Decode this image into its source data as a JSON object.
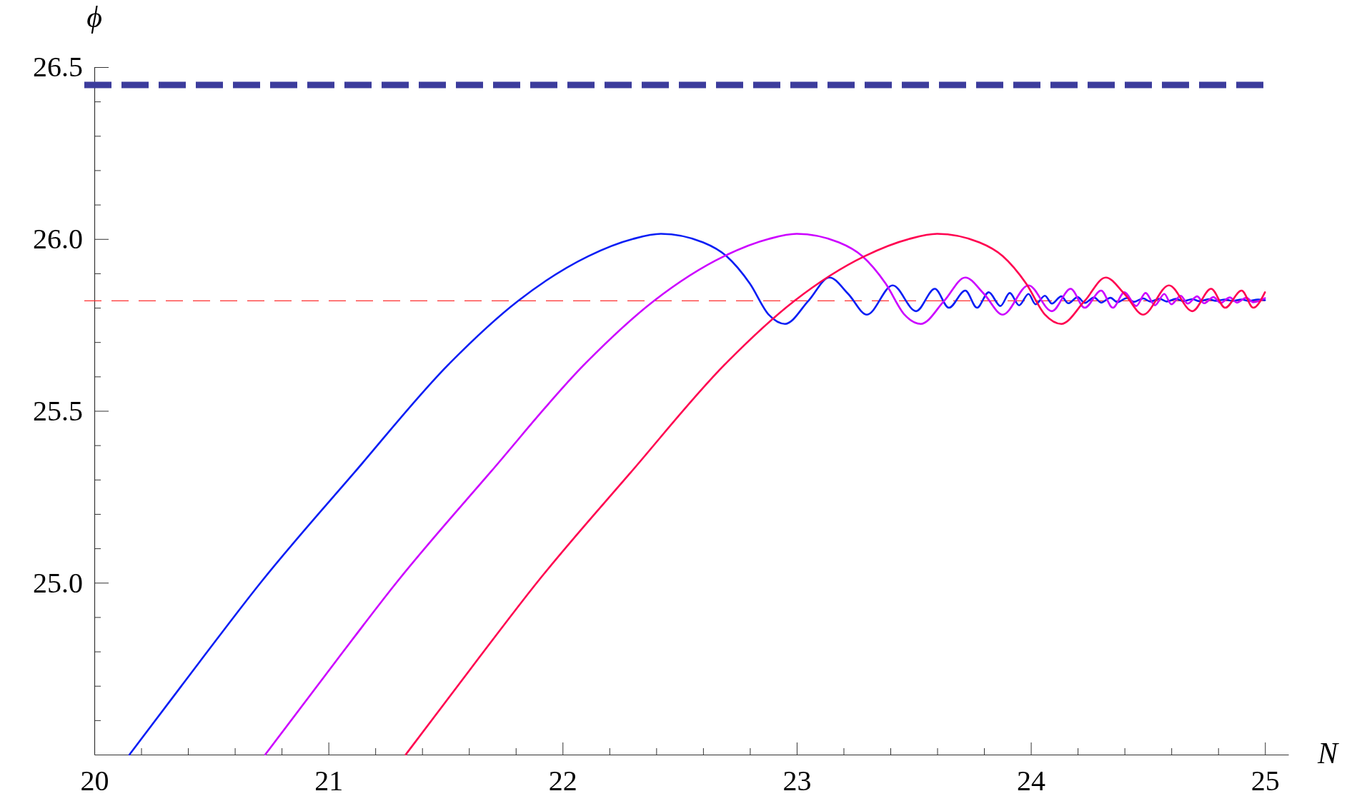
{
  "chart_data": {
    "type": "line",
    "xlabel": "N",
    "ylabel": "ϕ",
    "xlim": [
      20,
      25.1
    ],
    "ylim": [
      24.5,
      26.5
    ],
    "xticks": [
      20,
      {
        "value": 20.2,
        "label": null
      },
      {
        "value": 20.4,
        "label": null
      },
      {
        "value": 20.6,
        "label": null
      },
      {
        "value": 20.8,
        "label": null
      },
      21,
      {
        "value": 21.2,
        "label": null
      },
      {
        "value": 21.4,
        "label": null
      },
      {
        "value": 21.6,
        "label": null
      },
      {
        "value": 21.8,
        "label": null
      },
      22,
      {
        "value": 22.2,
        "label": null
      },
      {
        "value": 22.4,
        "label": null
      },
      {
        "value": 22.6,
        "label": null
      },
      {
        "value": 22.8,
        "label": null
      },
      23,
      {
        "value": 23.2,
        "label": null
      },
      {
        "value": 23.4,
        "label": null
      },
      {
        "value": 23.6,
        "label": null
      },
      {
        "value": 23.8,
        "label": null
      },
      24,
      {
        "value": 24.2,
        "label": null
      },
      {
        "value": 24.4,
        "label": null
      },
      {
        "value": 24.6,
        "label": null
      },
      {
        "value": 24.8,
        "label": null
      },
      25
    ],
    "yticks": [
      {
        "value": 24.6,
        "label": null
      },
      {
        "value": 24.7,
        "label": null
      },
      {
        "value": 24.8,
        "label": null
      },
      {
        "value": 24.9,
        "label": null
      },
      {
        "value": 25,
        "label": "25.0"
      },
      {
        "value": 25.1,
        "label": null
      },
      {
        "value": 25.2,
        "label": null
      },
      {
        "value": 25.3,
        "label": null
      },
      {
        "value": 25.4,
        "label": null
      },
      {
        "value": 25.5,
        "label": "25.5"
      },
      {
        "value": 25.6,
        "label": null
      },
      {
        "value": 25.7,
        "label": null
      },
      {
        "value": 25.8,
        "label": null
      },
      {
        "value": 25.9,
        "label": null
      },
      {
        "value": 26,
        "label": "26.0"
      },
      {
        "value": 26.1,
        "label": null
      },
      {
        "value": 26.2,
        "label": null
      },
      {
        "value": 26.3,
        "label": null
      },
      {
        "value": 26.4,
        "label": null
      },
      {
        "value": 26.5,
        "label": "26.5"
      }
    ],
    "line_style": "solid",
    "marker": "none",
    "grid": false,
    "ref_lines": [
      {
        "axis": "y",
        "value": 26.448,
        "color": "#3c3c9c",
        "line_style": "dashed"
      },
      {
        "axis": "y",
        "value": 25.82,
        "color": "#ff3030",
        "line_style": "dashed"
      }
    ],
    "series": [
      {
        "color": "#0a1ef5",
        "x": [
          20.15,
          20.45,
          20.71,
          21.11,
          21.52,
          21.81,
          22.11,
          22.3,
          22.42,
          22.6,
          22.7,
          22.8,
          22.88,
          22.95,
          23.05,
          23.14,
          23.22,
          23.3,
          23.41,
          23.51,
          23.59,
          23.65,
          23.72,
          23.77,
          23.82,
          23.87,
          23.91,
          23.95,
          23.99,
          24.02,
          24.06,
          24.09,
          24.13,
          24.16,
          24.2,
          24.23,
          24.27,
          24.3,
          24.34,
          24.37,
          24.41,
          24.44,
          24.48,
          24.51,
          24.55,
          24.58,
          24.62,
          24.65,
          24.69,
          24.72,
          24.76,
          24.79,
          24.83,
          24.86,
          24.9,
          24.93,
          24.97,
          25.0
        ],
        "values": [
          24.5,
          24.77,
          25.0,
          25.32,
          25.64,
          25.82,
          25.95,
          26.0,
          26.015,
          25.99,
          25.95,
          25.87,
          25.78,
          25.753,
          25.82,
          25.888,
          25.84,
          25.78,
          25.865,
          25.79,
          25.855,
          25.8,
          25.85,
          25.8,
          25.845,
          25.805,
          25.843,
          25.807,
          25.84,
          25.81,
          25.835,
          25.812,
          25.833,
          25.813,
          25.831,
          25.814,
          25.83,
          25.815,
          25.829,
          25.816,
          25.828,
          25.817,
          25.827,
          25.818,
          25.826,
          25.818,
          25.826,
          25.819,
          25.825,
          25.819,
          25.825,
          25.82,
          25.824,
          25.82,
          25.824,
          25.82,
          25.824,
          25.822
        ]
      },
      {
        "color": "#cc00ff",
        "x": [
          20.73,
          21.03,
          21.29,
          21.69,
          22.1,
          22.39,
          22.69,
          22.88,
          23.0,
          23.18,
          23.28,
          23.38,
          23.46,
          23.53,
          23.63,
          23.72,
          23.8,
          23.88,
          23.99,
          24.09,
          24.17,
          24.23,
          24.3,
          24.35,
          24.4,
          24.45,
          24.49,
          24.53,
          24.57,
          24.6,
          24.64,
          24.67,
          24.71,
          24.74,
          24.78,
          24.81,
          24.85,
          24.88,
          24.92,
          24.95,
          25.0
        ],
        "values": [
          24.5,
          24.77,
          25.0,
          25.32,
          25.64,
          25.82,
          25.95,
          26.0,
          26.015,
          25.99,
          25.95,
          25.87,
          25.78,
          25.753,
          25.82,
          25.888,
          25.84,
          25.78,
          25.865,
          25.79,
          25.855,
          25.8,
          25.85,
          25.8,
          25.845,
          25.805,
          25.843,
          25.807,
          25.84,
          25.81,
          25.835,
          25.812,
          25.833,
          25.813,
          25.831,
          25.814,
          25.83,
          25.815,
          25.829,
          25.816,
          25.828
        ]
      },
      {
        "color": "#ff0050",
        "x": [
          21.33,
          21.63,
          21.89,
          22.29,
          22.7,
          22.99,
          23.29,
          23.48,
          23.6,
          23.78,
          23.88,
          23.98,
          24.06,
          24.13,
          24.23,
          24.32,
          24.4,
          24.48,
          24.59,
          24.69,
          24.77,
          24.83,
          24.9,
          24.95,
          25.0
        ],
        "values": [
          24.5,
          24.77,
          25.0,
          25.32,
          25.64,
          25.82,
          25.95,
          26.0,
          26.015,
          25.99,
          25.95,
          25.87,
          25.78,
          25.753,
          25.82,
          25.888,
          25.84,
          25.78,
          25.865,
          25.79,
          25.855,
          25.8,
          25.85,
          25.8,
          25.845
        ]
      }
    ]
  }
}
